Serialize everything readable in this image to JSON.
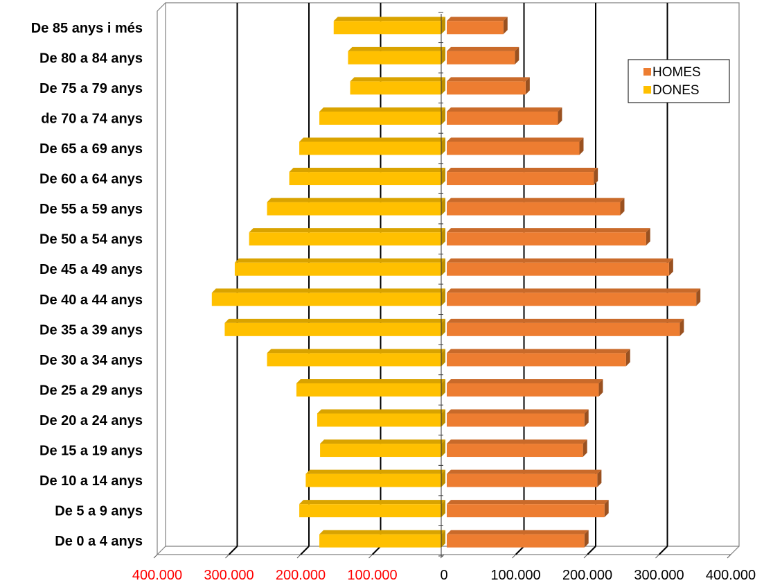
{
  "chart_data": {
    "type": "bar",
    "orientation": "horizontal",
    "style": "population-pyramid-3d",
    "categories": [
      "De 85 anys i més",
      "De 80 a 84 anys",
      "De 75 a 79 anys",
      "de 70 a 74 anys",
      "De 65 a 69 anys",
      "De 60 a 64 anys",
      "De 55 a 59 anys",
      "De 50 a 54 anys",
      "De 45 a 49 anys",
      "De 40 a 44 anys",
      "De 35 a 39 anys",
      "De 30 a 34 anys",
      "De 25 a 29 anys",
      "De 20 a 24 anys",
      "De 15 a 19 anys",
      "De 10 a 14 anys",
      "De 5 a 9 anys",
      "De 0 a 4 anys"
    ],
    "series": [
      {
        "name": "HOMES",
        "side": "right",
        "color": "#ED7D31",
        "values": [
          79000,
          95000,
          110000,
          155000,
          185000,
          205000,
          242000,
          278000,
          310000,
          348000,
          325000,
          250000,
          212000,
          192000,
          190000,
          210000,
          220000,
          192000
        ]
      },
      {
        "name": "DONES",
        "side": "left",
        "color": "#FFC000",
        "values": [
          150000,
          130000,
          127000,
          170000,
          198000,
          212000,
          243000,
          268000,
          288000,
          320000,
          302000,
          243000,
          202000,
          173000,
          169000,
          189000,
          198000,
          170000
        ]
      }
    ],
    "x_ticks": [
      "400.000",
      "300.000",
      "200.000",
      "100.000",
      "0",
      "100.000",
      "200.000",
      "300.000",
      "400.000"
    ],
    "xlim": [
      -400000,
      400000
    ],
    "grid": true,
    "legend": {
      "position": "top-right",
      "entries": [
        "HOMES",
        "DONES"
      ]
    },
    "title": "",
    "xlabel": "",
    "ylabel": "",
    "negative_tick_color": "#FF0000",
    "positive_tick_color": "#000000"
  }
}
